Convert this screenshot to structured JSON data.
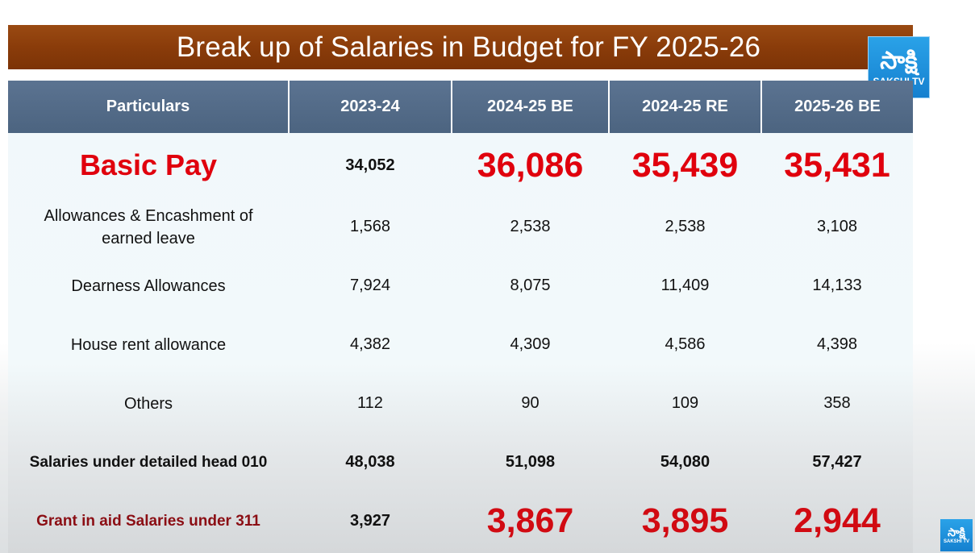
{
  "title": "Break up of Salaries in Budget for FY 2025-26",
  "logo": {
    "glyph": "సాక్షి",
    "name": "SAKSHI TV"
  },
  "columns": [
    "Particulars",
    "2023-24",
    "2024-25 BE",
    "2024-25 RE",
    "2025-26 BE"
  ],
  "rows": [
    {
      "label": "Basic Pay",
      "values": [
        "34,052",
        "36,086",
        "35,439",
        "35,431"
      ]
    },
    {
      "label": "Allowances & Encashment of earned leave",
      "values": [
        "1,568",
        "2,538",
        "2,538",
        "3,108"
      ]
    },
    {
      "label": "Dearness Allowances",
      "values": [
        "7,924",
        "8,075",
        "11,409",
        "14,133"
      ]
    },
    {
      "label": "House rent allowance",
      "values": [
        "4,382",
        "4,309",
        "4,586",
        "4,398"
      ]
    },
    {
      "label": "Others",
      "values": [
        "112",
        "90",
        "109",
        "358"
      ]
    },
    {
      "label": "Salaries under detailed head 010",
      "values": [
        "48,038",
        "51,098",
        "54,080",
        "57,427"
      ]
    },
    {
      "label": "Grant in aid Salaries under 311",
      "values": [
        "3,927",
        "3,867",
        "3,895",
        "2,944"
      ]
    }
  ],
  "colors": {
    "title_bar": "#8a3c0a",
    "header": "#526a86",
    "highlight_red": "#e0000d",
    "dark_red": "#8b0e14"
  }
}
